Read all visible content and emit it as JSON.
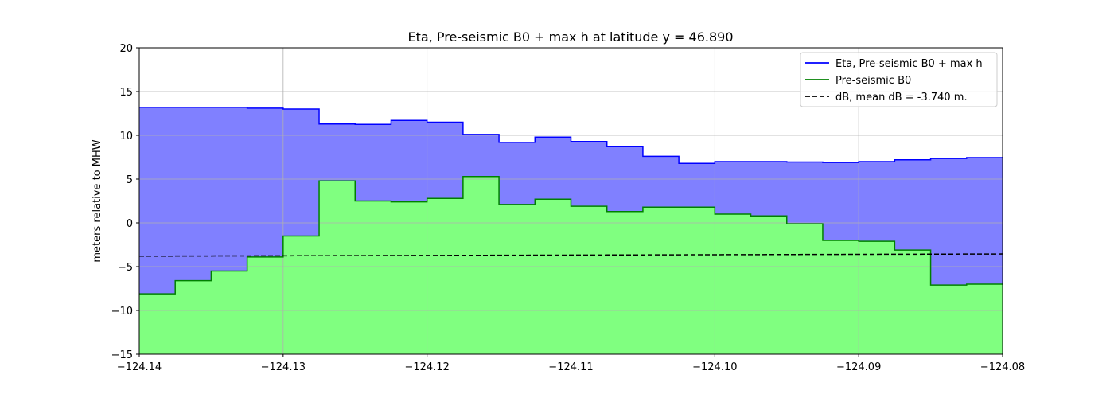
{
  "chart_data": {
    "type": "area",
    "title": "Eta, Pre-seismic B0 + max h at latitude y = 46.890",
    "xlabel": "",
    "ylabel": "meters relative to MHW",
    "xlim": [
      -124.14,
      -124.08
    ],
    "ylim": [
      -15,
      20
    ],
    "x_ticks": [
      -124.14,
      -124.13,
      -124.12,
      -124.11,
      -124.1,
      -124.09,
      -124.08
    ],
    "x_tick_labels": [
      "−124.14",
      "−124.13",
      "−124.12",
      "−124.11",
      "−124.10",
      "−124.09",
      "−124.08"
    ],
    "y_ticks": [
      -15,
      -10,
      -5,
      0,
      5,
      10,
      15,
      20
    ],
    "y_tick_labels": [
      "−15",
      "−10",
      "−5",
      "0",
      "5",
      "10",
      "15",
      "20"
    ],
    "grid": true,
    "legend_position": "top-right",
    "colors": {
      "eta_line": "#0000ff",
      "eta_fill": "#8080ff",
      "b0_line": "#008000",
      "b0_fill": "#80ff80",
      "db_line": "#000000"
    },
    "series": [
      {
        "name": "Eta, Pre-seismic B0 + max h",
        "style": "steps-post",
        "x": [
          -124.14,
          -124.1375,
          -124.135,
          -124.1325,
          -124.13,
          -124.1275,
          -124.125,
          -124.1225,
          -124.12,
          -124.1175,
          -124.115,
          -124.1125,
          -124.11,
          -124.1075,
          -124.105,
          -124.1025,
          -124.1,
          -124.0975,
          -124.095,
          -124.0925,
          -124.09,
          -124.0875,
          -124.085,
          -124.0825,
          -124.08
        ],
        "y": [
          13.2,
          13.2,
          13.2,
          13.1,
          13.0,
          11.3,
          11.25,
          11.7,
          11.5,
          10.1,
          9.2,
          9.8,
          9.3,
          8.7,
          7.6,
          6.8,
          7.0,
          7.0,
          6.95,
          6.9,
          7.0,
          7.2,
          7.35,
          7.45,
          7.45
        ]
      },
      {
        "name": "Pre-seismic B0",
        "style": "steps-post",
        "x": [
          -124.14,
          -124.1375,
          -124.135,
          -124.1325,
          -124.13,
          -124.1275,
          -124.125,
          -124.1225,
          -124.12,
          -124.1175,
          -124.115,
          -124.1125,
          -124.11,
          -124.1075,
          -124.105,
          -124.1025,
          -124.1,
          -124.0975,
          -124.095,
          -124.0925,
          -124.09,
          -124.0875,
          -124.085,
          -124.0825,
          -124.08
        ],
        "y": [
          -8.1,
          -6.6,
          -5.5,
          -3.9,
          -1.5,
          4.8,
          2.5,
          2.4,
          2.8,
          5.3,
          2.1,
          2.7,
          1.9,
          1.3,
          1.8,
          1.8,
          1.0,
          0.8,
          -0.1,
          -2.0,
          -2.1,
          -3.1,
          -7.1,
          -7.0,
          -7.0
        ]
      },
      {
        "name": "dB, mean dB = -3.740 m.",
        "style": "dashed",
        "x": [
          -124.14,
          -124.08
        ],
        "y": [
          -3.8,
          -3.55
        ]
      }
    ]
  }
}
